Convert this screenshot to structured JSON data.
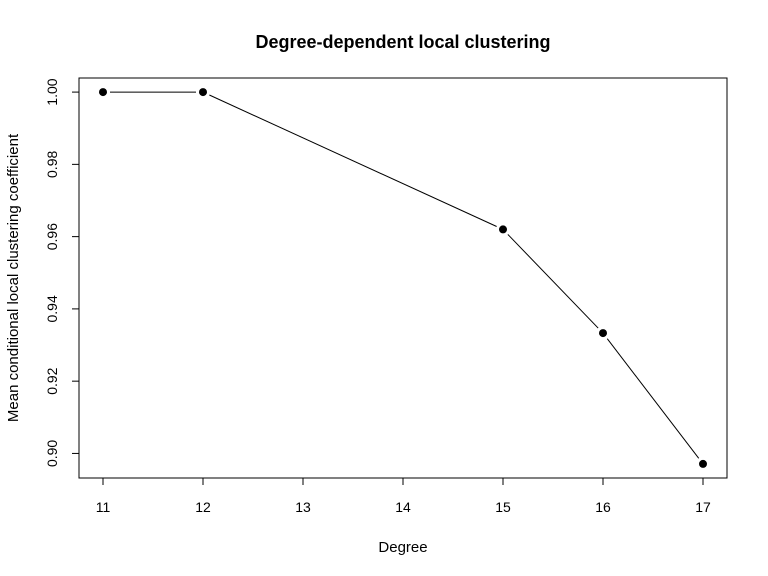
{
  "chart_data": {
    "type": "line",
    "title": "Degree-dependent local clustering",
    "xlabel": "Degree",
    "ylabel": "Mean conditional local clustering coefficient",
    "x": [
      11,
      12,
      15,
      16,
      17
    ],
    "y": [
      1.0,
      1.0,
      0.962,
      0.9333,
      0.8971
    ],
    "x_ticks": [
      11,
      12,
      13,
      14,
      15,
      16,
      17
    ],
    "x_tick_labels": [
      "11",
      "12",
      "13",
      "14",
      "15",
      "16",
      "17"
    ],
    "y_ticks": [
      0.9,
      0.92,
      0.94,
      0.96,
      0.98,
      1.0
    ],
    "y_tick_labels": [
      "0.90",
      "0.92",
      "0.94",
      "0.96",
      "0.98",
      "1.00"
    ],
    "xlim": [
      10.76,
      17.24
    ],
    "ylim": [
      0.8932,
      1.0039
    ],
    "grid": false,
    "line_color": "#000000",
    "marker_color": "#000000"
  }
}
